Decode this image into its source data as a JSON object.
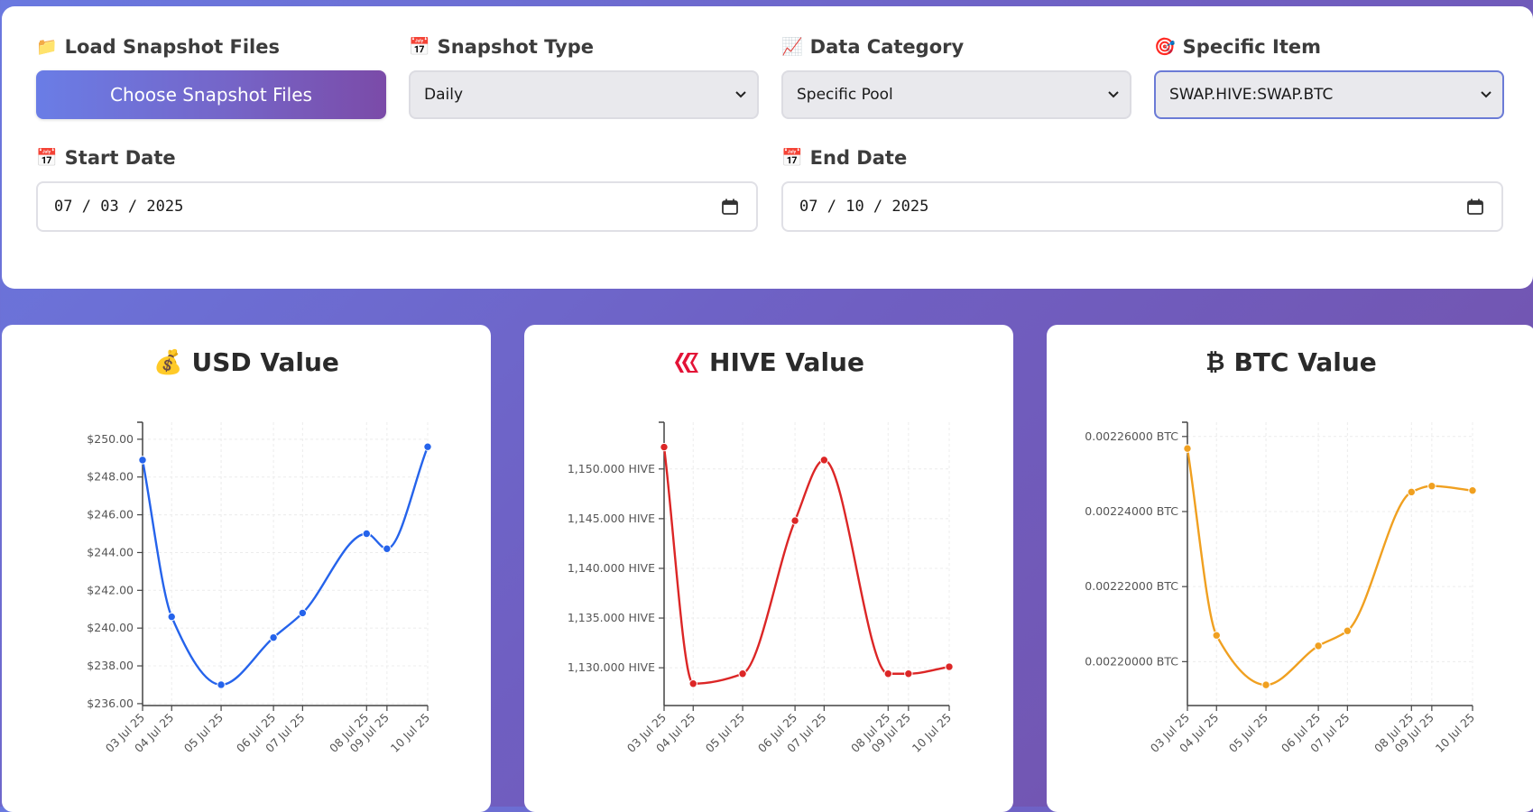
{
  "controls": {
    "load": {
      "label": "Load Snapshot Files",
      "icon": "folder-icon",
      "button": "Choose Snapshot Files"
    },
    "snapshot_type": {
      "label": "Snapshot Type",
      "icon": "calendar-icon",
      "value": "Daily"
    },
    "data_category": {
      "label": "Data Category",
      "icon": "chart-icon",
      "value": "Specific Pool"
    },
    "specific_item": {
      "label": "Specific Item",
      "icon": "target-icon",
      "value": "SWAP.HIVE:SWAP.BTC"
    },
    "start_date": {
      "label": "Start Date",
      "icon": "calendar-icon",
      "month": "07",
      "day": "03",
      "year": "2025"
    },
    "end_date": {
      "label": "End Date",
      "icon": "calendar-icon",
      "month": "07",
      "day": "10",
      "year": "2025"
    }
  },
  "chart_data": [
    {
      "type": "line",
      "title": "USD Value",
      "icon": "money-bag-icon",
      "color": "#2563eb",
      "x": [
        "03 Jul 25",
        "04 Jul 25",
        "05 Jul 25",
        "06 Jul 25",
        "07 Jul 25",
        "08 Jul 25",
        "09 Jul 25",
        "10 Jul 25"
      ],
      "x_days": [
        0,
        1,
        2.7,
        4.5,
        5.5,
        7.7,
        8.4,
        9.8
      ],
      "values": [
        248.9,
        240.6,
        237.0,
        239.5,
        240.8,
        245.0,
        244.2,
        249.6
      ],
      "yticks": [
        "$236.00",
        "$238.00",
        "$240.00",
        "$242.00",
        "$244.00",
        "$246.00",
        "$248.00",
        "$250.00"
      ],
      "ytick_values": [
        236,
        238,
        240,
        242,
        244,
        246,
        248,
        250
      ],
      "ylim": [
        235.9,
        250.9
      ]
    },
    {
      "type": "line",
      "title": "HIVE Value",
      "icon": "hive-logo-icon",
      "color": "#dc2626",
      "x": [
        "03 Jul 25",
        "04 Jul 25",
        "05 Jul 25",
        "06 Jul 25",
        "07 Jul 25",
        "08 Jul 25",
        "09 Jul 25",
        "10 Jul 25"
      ],
      "x_days": [
        0,
        1,
        2.7,
        4.5,
        5.5,
        7.7,
        8.4,
        9.8
      ],
      "values": [
        1152.2,
        1128.4,
        1129.4,
        1144.8,
        1150.9,
        1129.4,
        1129.4,
        1130.1
      ],
      "yticks": [
        "1,130.000 HIVE",
        "1,135.000 HIVE",
        "1,140.000 HIVE",
        "1,145.000 HIVE",
        "1,150.000 HIVE"
      ],
      "ytick_values": [
        1130,
        1135,
        1140,
        1145,
        1150
      ],
      "ylim": [
        1126.2,
        1154.7
      ]
    },
    {
      "type": "line",
      "title": "BTC Value",
      "icon": "bitcoin-icon",
      "color": "#f0a020",
      "x": [
        "03 Jul 25",
        "04 Jul 25",
        "05 Jul 25",
        "06 Jul 25",
        "07 Jul 25",
        "08 Jul 25",
        "09 Jul 25",
        "10 Jul 25"
      ],
      "x_days": [
        0,
        1,
        2.7,
        4.5,
        5.5,
        7.7,
        8.4,
        9.8
      ],
      "values": [
        0.0022568,
        0.002207,
        0.0021938,
        0.0022042,
        0.0022082,
        0.0022452,
        0.0022468,
        0.0022456
      ],
      "yticks": [
        "0.00220000 BTC",
        "0.00222000 BTC",
        "0.00224000 BTC",
        "0.00226000 BTC"
      ],
      "ytick_values": [
        0.0022,
        0.00222,
        0.00224,
        0.00226
      ],
      "ylim": [
        0.0021883,
        0.0022638
      ]
    }
  ]
}
